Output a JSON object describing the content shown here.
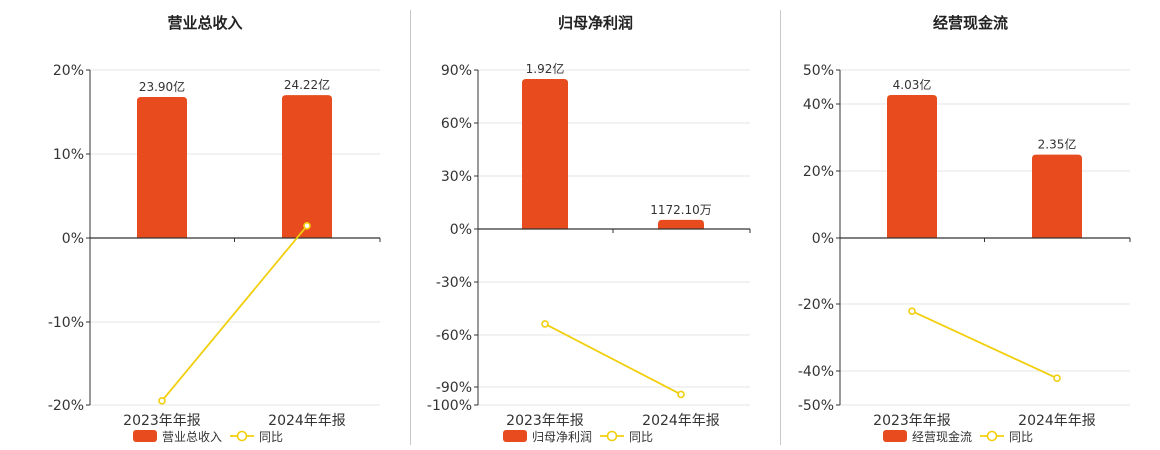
{
  "colors": {
    "bar": "#e84c1e",
    "line": "#f2cf0d",
    "grid": "#e6e6e6",
    "axis": "#333333"
  },
  "legend": {
    "line_label": "同比"
  },
  "chart_data": [
    {
      "type": "bar",
      "title": "营业总收入",
      "categories": [
        "2023年年报",
        "2024年年报"
      ],
      "bar_series": {
        "name": "营业总收入",
        "values": [
          23.9,
          24.22
        ],
        "labels": [
          "23.90亿",
          "24.22亿"
        ]
      },
      "line_series": {
        "name": "同比",
        "values": [
          -19.5,
          1.4
        ]
      },
      "yticks": [
        "20%",
        "10%",
        "0%",
        "-10%",
        "-20%"
      ],
      "ylim": [
        -20,
        20
      ]
    },
    {
      "type": "bar",
      "title": "归母净利润",
      "categories": [
        "2023年年报",
        "2024年年报"
      ],
      "bar_series": {
        "name": "归母净利润",
        "values": [
          1.92,
          0.117
        ],
        "labels": [
          "1.92亿",
          "1172.10万"
        ]
      },
      "line_series": {
        "name": "同比",
        "values": [
          -54,
          -94
        ]
      },
      "yticks": [
        "90%",
        "60%",
        "30%",
        "0%",
        "-30%",
        "-60%",
        "-90%",
        "-100%"
      ],
      "ylim": [
        -100,
        90
      ]
    },
    {
      "type": "bar",
      "title": "经营现金流",
      "categories": [
        "2023年年报",
        "2024年年报"
      ],
      "bar_series": {
        "name": "经营现金流",
        "values": [
          4.03,
          2.35
        ],
        "labels": [
          "4.03亿",
          "2.35亿"
        ]
      },
      "line_series": {
        "name": "同比",
        "values": [
          -22,
          -42
        ]
      },
      "yticks": [
        "50%",
        "40%",
        "20%",
        "0%",
        "-20%",
        "-40%",
        "-50%"
      ],
      "ylim": [
        -50,
        50
      ]
    }
  ]
}
